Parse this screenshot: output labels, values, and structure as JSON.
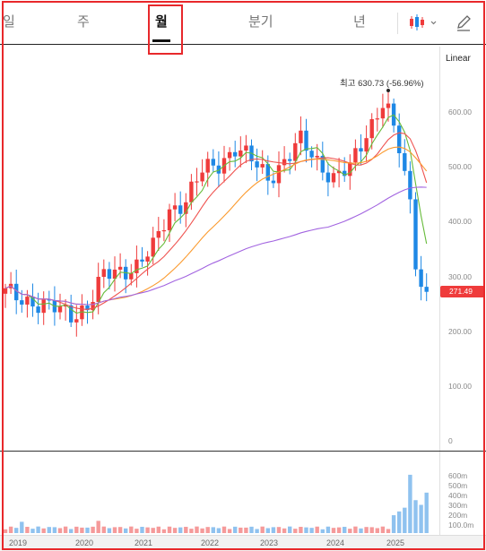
{
  "tabs": {
    "day": "일",
    "week": "주",
    "month": "월",
    "quarter": "분기",
    "year": "년"
  },
  "toolbar": {
    "chart_type_icon": "candlestick-icon",
    "dropdown_icon": "chevron-down-icon",
    "draw_icon": "pen-icon"
  },
  "scale_mode": "Linear",
  "high_label": "최고 630.73 (-56.96%)",
  "last_price_label": "271.49",
  "colors": {
    "up": "#ef3b3b",
    "down": "#1e88e5",
    "ma5": "#66bb3a",
    "ma10": "#ef5350",
    "ma20": "#fb9a2e",
    "ma60": "#a264e0",
    "highlight": "#e8282b"
  },
  "chart_data": {
    "type": "candlestick",
    "interval": "monthly",
    "price_ticks": [
      "600.00",
      "500.00",
      "400.00",
      "300.00",
      "200.00",
      "100.00",
      "0"
    ],
    "volume_ticks": [
      "600m",
      "500m",
      "400m",
      "300m",
      "200m",
      "100.0m"
    ],
    "x_ticks": [
      "2019",
      "2020",
      "2021",
      "2022",
      "2023",
      "2024",
      "2025"
    ],
    "ylim": [
      0,
      680
    ],
    "high": 630.73,
    "last": 271.49
  }
}
